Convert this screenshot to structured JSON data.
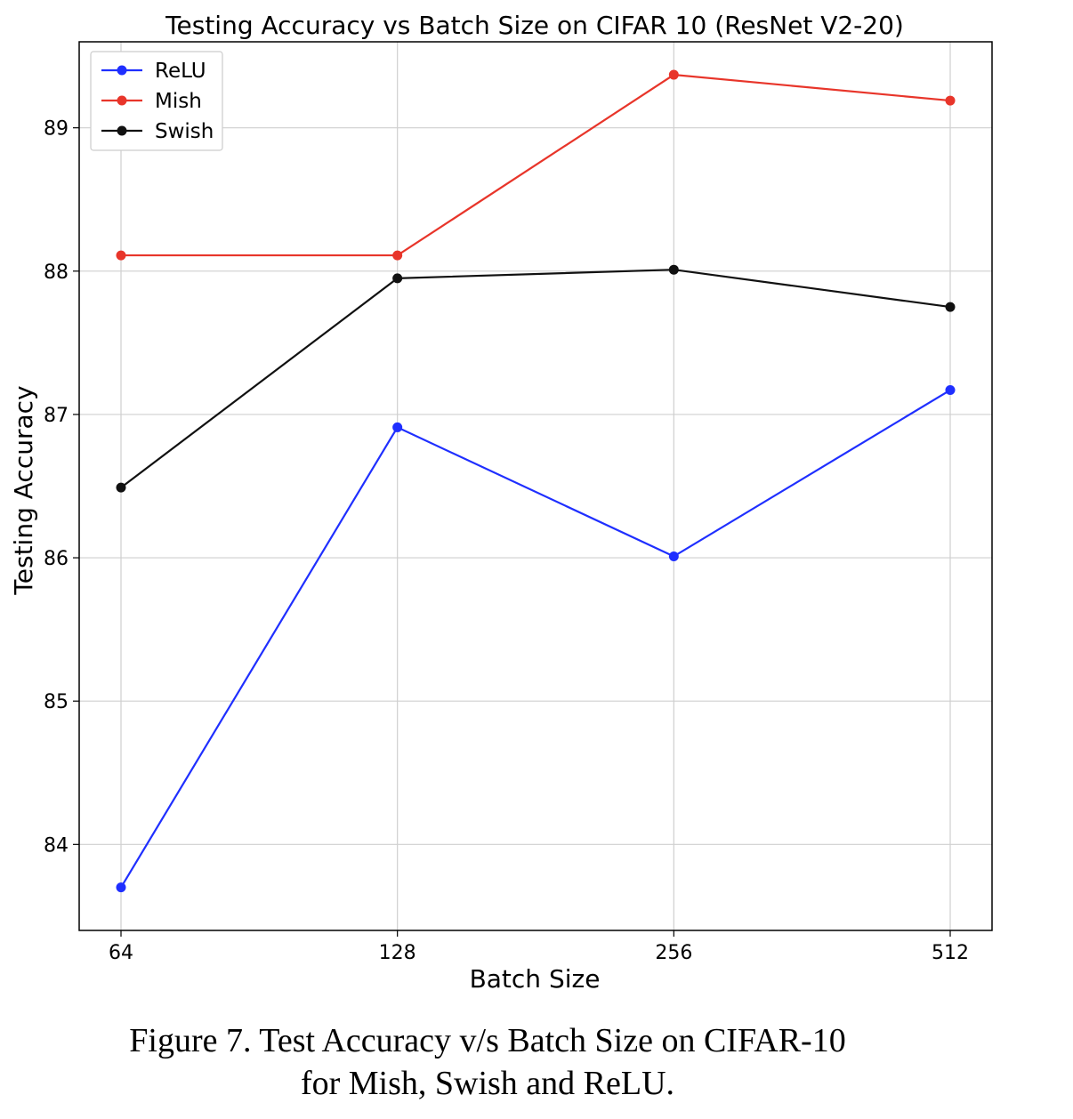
{
  "chart_data": {
    "type": "line",
    "title": "Testing Accuracy vs Batch Size on CIFAR 10 (ResNet V2-20)",
    "xlabel": "Batch Size",
    "ylabel": "Testing Accuracy",
    "categories": [
      "64",
      "128",
      "256",
      "512"
    ],
    "yticks": [
      "84",
      "85",
      "86",
      "87",
      "88",
      "89"
    ],
    "ylim": [
      83.4,
      89.6
    ],
    "grid": true,
    "legend_position": "top-left",
    "series": [
      {
        "name": "ReLU",
        "color": "#1f2fff",
        "values": [
          83.7,
          86.91,
          86.01,
          87.17
        ]
      },
      {
        "name": "Mish",
        "color": "#e8352a",
        "values": [
          88.11,
          88.11,
          89.37,
          89.19
        ]
      },
      {
        "name": "Swish",
        "color": "#111111",
        "values": [
          86.49,
          87.95,
          88.01,
          87.75
        ]
      }
    ]
  },
  "caption": {
    "line1": "Figure 7. Test Accuracy v/s Batch Size on CIFAR-10",
    "line2": "for Mish, Swish and ReLU."
  }
}
